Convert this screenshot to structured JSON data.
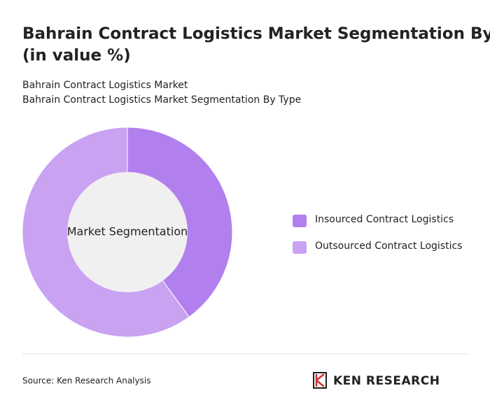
{
  "chart_data": {
    "type": "donut",
    "title": "Bahrain Contract Logistics Market Segmentation By Type (in value %)",
    "subtitle": [
      "Bahrain Contract Logistics Market",
      "Bahrain Contract Logistics Market Segmentation By Type"
    ],
    "center_label": "Market Segmentation",
    "categories": [
      "Insourced Contract Logistics",
      "Outsourced Contract Logistics"
    ],
    "values": [
      40,
      60
    ],
    "colors": [
      "#b27fee",
      "#c9a2f1"
    ],
    "legend": "right"
  },
  "footer": {
    "source": "Source: Ken Research Analysis",
    "brand": "KEN RESEARCH"
  }
}
